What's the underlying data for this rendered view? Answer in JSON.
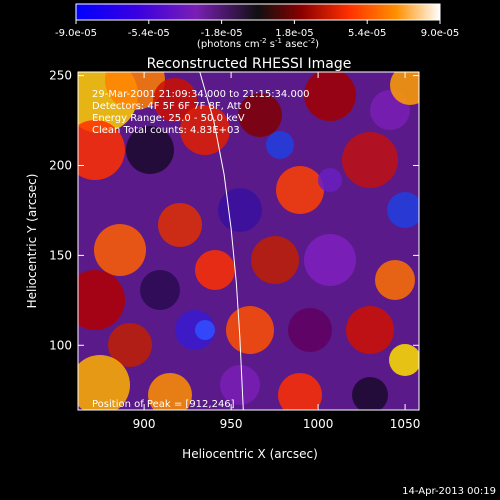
{
  "colorbar": {
    "ticks": [
      "-9.0e-05",
      "-5.4e-05",
      "-1.8e-05",
      "1.8e-05",
      "5.4e-05",
      "9.0e-05"
    ],
    "unit_main": "(photons cm",
    "unit_exp1": "-2",
    "unit_mid": " s",
    "unit_exp2": "-1",
    "unit_end": " asec",
    "unit_exp3": "-2",
    "unit_close": ")"
  },
  "chart_data": {
    "type": "heatmap",
    "title": "Reconstructed RHESSI Image",
    "xlabel": "Heliocentric X (arcsec)",
    "ylabel": "Heliocentric Y (arcsec)",
    "xlim": [
      862,
      1058
    ],
    "ylim": [
      64,
      252
    ],
    "xticks": [
      900,
      950,
      1000,
      1050
    ],
    "yticks": [
      100,
      150,
      200,
      250
    ],
    "zlim": [
      -9e-05,
      9e-05
    ],
    "annotations": [
      "29-Mar-2001 21:09:34.000 to 21:15:34.000",
      "Detectors: 4F 5F 6F 7F 8F, Att 0",
      "Energy Range: 25.0 - 50.0 keV",
      "Clean     Total counts: 4.83E+03"
    ],
    "peak_label": "Position of Peak = [912,246]",
    "limb_curve": [
      [
        932,
        252
      ],
      [
        940,
        225
      ],
      [
        946,
        195
      ],
      [
        950,
        165
      ],
      [
        953,
        135
      ],
      [
        955,
        105
      ],
      [
        957,
        64
      ]
    ]
  },
  "footer": {
    "timestamp": "14-Apr-2013 00:19"
  }
}
